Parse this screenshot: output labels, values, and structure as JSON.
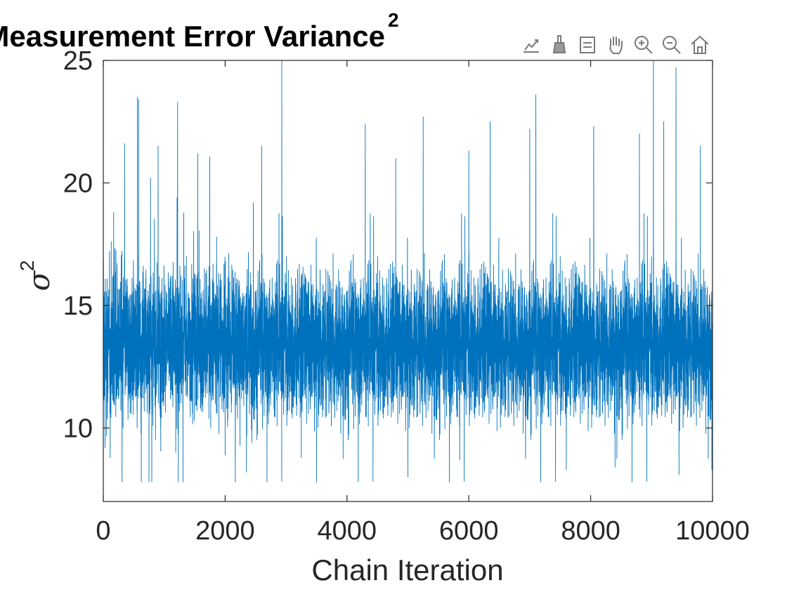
{
  "chart_data": {
    "type": "line",
    "title": "Measurement Error Variance",
    "title_superscript": "2",
    "xlabel": "Chain Iteration",
    "ylabel": "σ",
    "ylabel_superscript": "2",
    "xlim": [
      0,
      10000
    ],
    "ylim": [
      7,
      25
    ],
    "x_ticks": [
      0,
      2000,
      4000,
      6000,
      8000,
      10000
    ],
    "y_ticks": [
      10,
      15,
      20,
      25
    ],
    "grid": false,
    "legend": "none",
    "series": [
      {
        "color": "#0072BD",
        "n_points": 10000,
        "mean": 13.5,
        "typical_band": [
          10.5,
          16.5
        ],
        "min": 7.8,
        "max": 25.0,
        "spikes": [
          {
            "x": 0,
            "y": 18.3
          },
          {
            "x": 30,
            "y": 9.2
          },
          {
            "x": 350,
            "y": 21.6
          },
          {
            "x": 560,
            "y": 23.5
          },
          {
            "x": 580,
            "y": 23.4
          },
          {
            "x": 750,
            "y": 7.8
          },
          {
            "x": 900,
            "y": 21.5
          },
          {
            "x": 1220,
            "y": 23.3
          },
          {
            "x": 1550,
            "y": 21.2
          },
          {
            "x": 2000,
            "y": 8.9
          },
          {
            "x": 2350,
            "y": 8.2
          },
          {
            "x": 2600,
            "y": 21.5
          },
          {
            "x": 2930,
            "y": 25.0
          },
          {
            "x": 3250,
            "y": 8.8
          },
          {
            "x": 3500,
            "y": 7.8
          },
          {
            "x": 4300,
            "y": 22.4
          },
          {
            "x": 4800,
            "y": 21.0
          },
          {
            "x": 5000,
            "y": 8.0
          },
          {
            "x": 5250,
            "y": 22.7
          },
          {
            "x": 5850,
            "y": 8.7
          },
          {
            "x": 6000,
            "y": 21.3
          },
          {
            "x": 6350,
            "y": 22.5
          },
          {
            "x": 7000,
            "y": 22.2
          },
          {
            "x": 7100,
            "y": 23.6
          },
          {
            "x": 7600,
            "y": 8.3
          },
          {
            "x": 8050,
            "y": 22.3
          },
          {
            "x": 8400,
            "y": 8.4
          },
          {
            "x": 8800,
            "y": 22.0
          },
          {
            "x": 9030,
            "y": 25.0
          },
          {
            "x": 9200,
            "y": 22.5
          },
          {
            "x": 9400,
            "y": 24.7
          },
          {
            "x": 9450,
            "y": 8.1
          },
          {
            "x": 9800,
            "y": 21.5
          },
          {
            "x": 9990,
            "y": 8.3
          },
          {
            "x": 10000,
            "y": 18.5
          }
        ]
      }
    ]
  },
  "toolbar": {
    "buttons": [
      "export-icon",
      "brush-icon",
      "data-tips-icon",
      "pan-icon",
      "zoom-in-icon",
      "zoom-out-icon",
      "home-icon"
    ]
  }
}
